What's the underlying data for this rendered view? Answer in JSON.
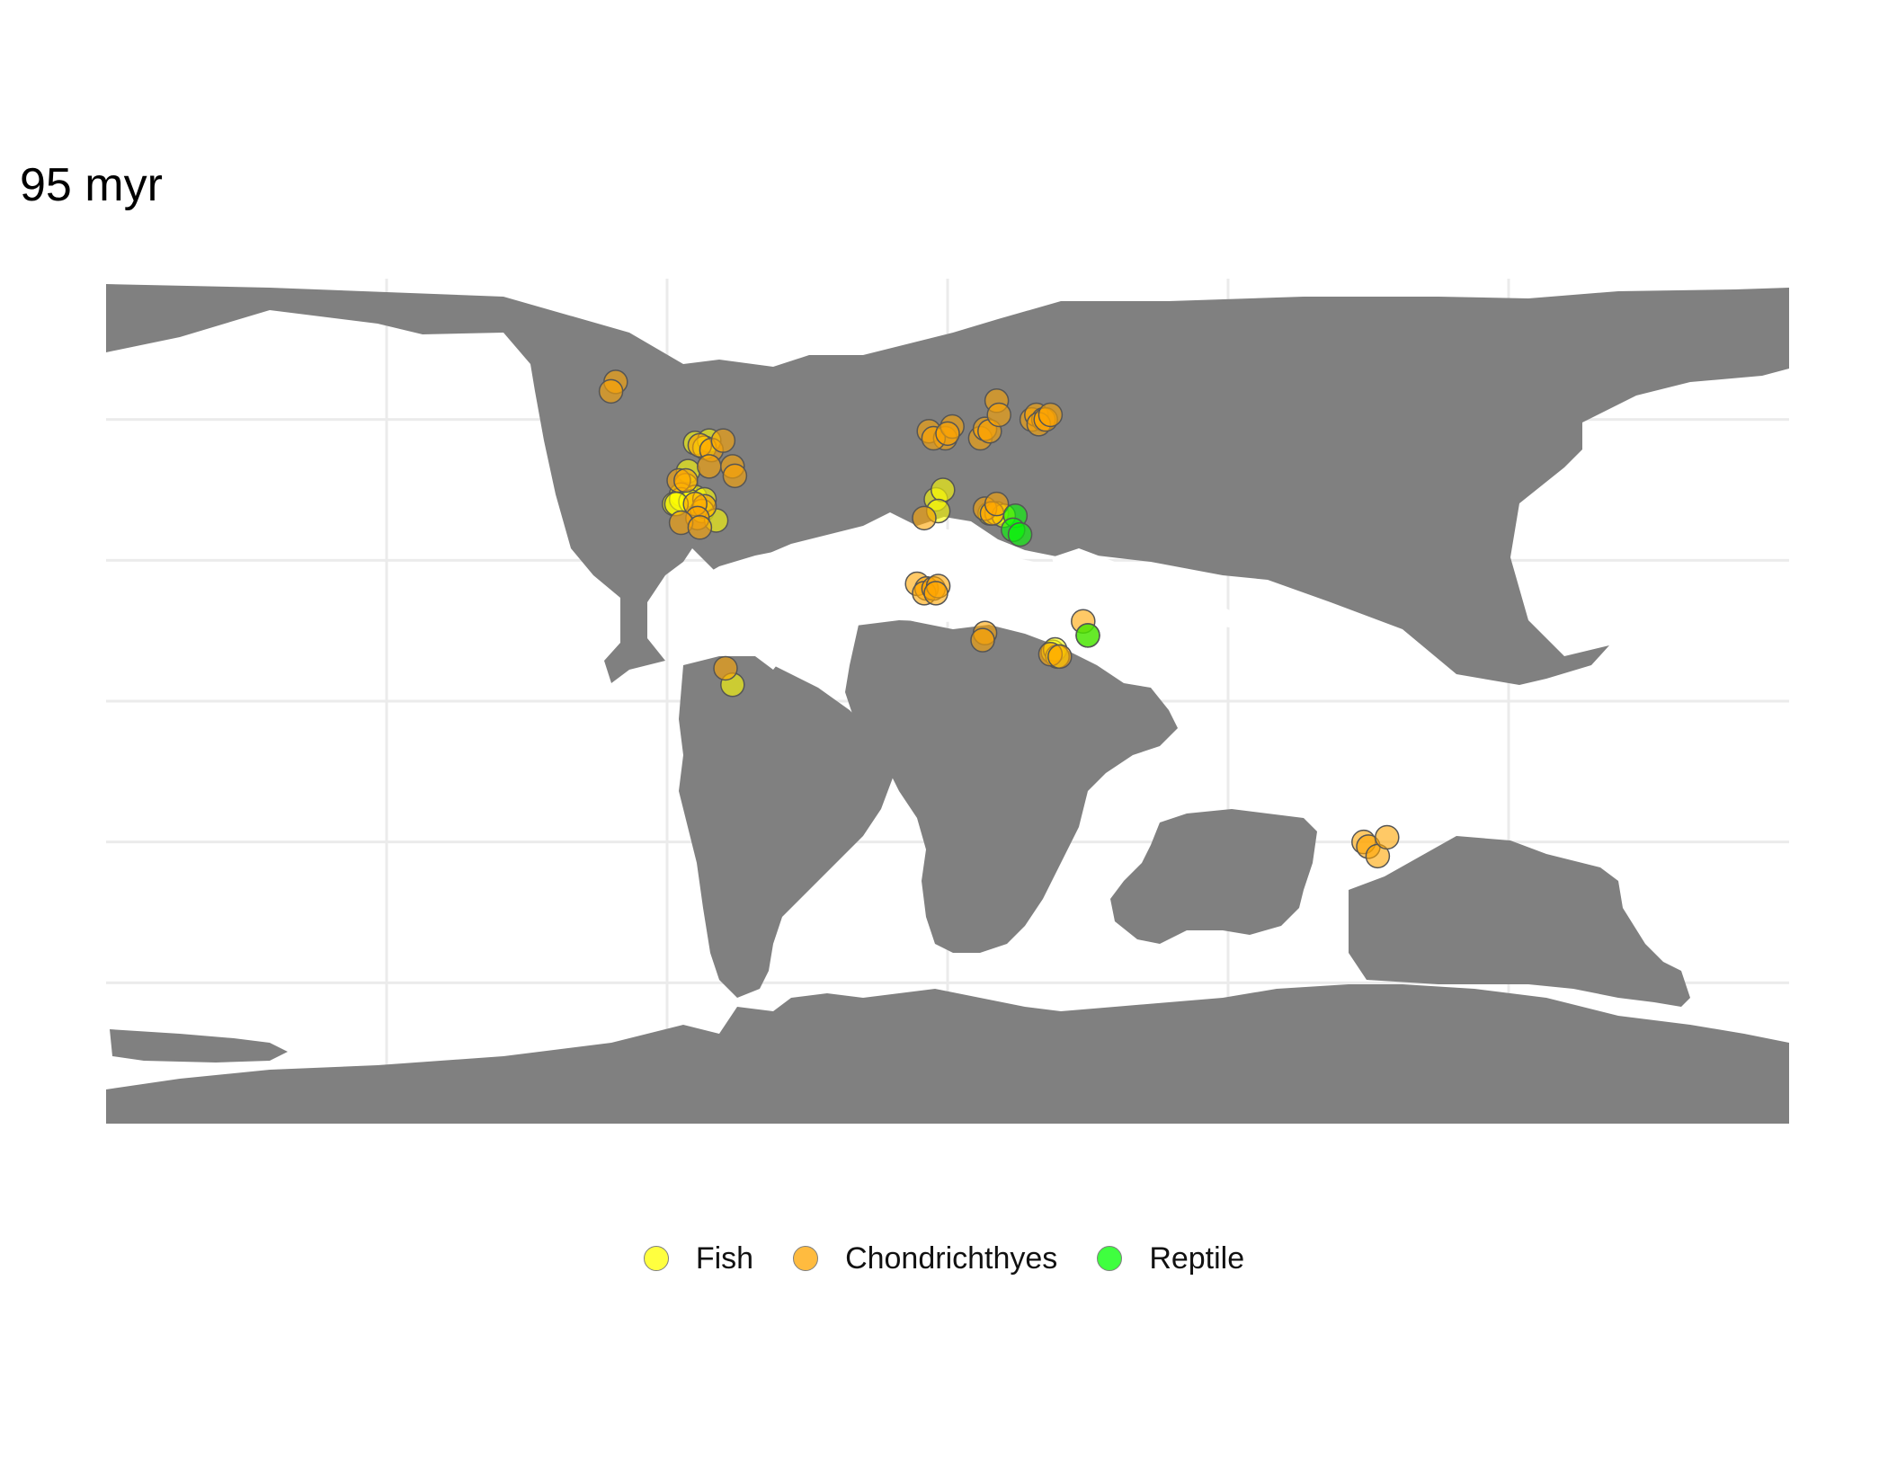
{
  "title": "95 myr",
  "legend": [
    {
      "label": "Fish",
      "color": "#FFFF00"
    },
    {
      "label": "Chondrichthyes",
      "color": "#FFA500"
    },
    {
      "label": "Reptile",
      "color": "#00FF00"
    }
  ],
  "colors": {
    "land": "#808080",
    "grid": "#EBEBEB",
    "point_stroke": "#555555"
  },
  "grid": {
    "longitudes": [
      -120,
      -60,
      0,
      60,
      120
    ],
    "latitudes": [
      -60,
      -30,
      0,
      30,
      60
    ]
  },
  "chart_data": {
    "type": "scatter",
    "projection": "equirectangular",
    "xlim": [
      -180,
      180
    ],
    "ylim": [
      -90,
      90
    ],
    "series": [
      {
        "name": "Fish",
        "points": [
          [
            -54,
            55
          ],
          [
            -51,
            55.5
          ],
          [
            -52,
            54
          ],
          [
            -55.5,
            49
          ],
          [
            -56,
            46
          ],
          [
            -57,
            44
          ],
          [
            -58.5,
            42
          ],
          [
            -57,
            43
          ],
          [
            -54,
            43.5
          ],
          [
            -55,
            42.5
          ],
          [
            -52,
            43
          ],
          [
            -58,
            42
          ],
          [
            -52.5,
            40.5
          ],
          [
            -49.5,
            38.5
          ],
          [
            -46,
            3.5
          ],
          [
            -2.5,
            43
          ],
          [
            -1,
            45
          ],
          [
            -2,
            40.5
          ],
          [
            9,
            40
          ],
          [
            10.5,
            40
          ],
          [
            12,
            39.5
          ],
          [
            22.5,
            10.5
          ],
          [
            23,
            11
          ],
          [
            23.5,
            9.5
          ]
        ]
      },
      {
        "name": "Chondrichthyes",
        "points": [
          [
            -71,
            68
          ],
          [
            -72,
            66
          ],
          [
            -53,
            54.5
          ],
          [
            -50.5,
            53.5
          ],
          [
            -48,
            55.5
          ],
          [
            -46,
            50
          ],
          [
            -45.5,
            48
          ],
          [
            -51,
            50
          ],
          [
            -57.5,
            47
          ],
          [
            -56,
            47
          ],
          [
            -52,
            41.5
          ],
          [
            -54,
            42
          ],
          [
            -53.5,
            39
          ],
          [
            -57,
            38
          ],
          [
            -53,
            37
          ],
          [
            -47.5,
            7
          ],
          [
            -4,
            57.5
          ],
          [
            -0.5,
            56
          ],
          [
            -3,
            56
          ],
          [
            1,
            58.5
          ],
          [
            0,
            57
          ],
          [
            7,
            56
          ],
          [
            8,
            58
          ],
          [
            9,
            57.5
          ],
          [
            10.5,
            64
          ],
          [
            11,
            61
          ],
          [
            18,
            60
          ],
          [
            19,
            61
          ],
          [
            20.5,
            60
          ],
          [
            19.5,
            59
          ],
          [
            21,
            60
          ],
          [
            22,
            61
          ],
          [
            -5,
            39
          ],
          [
            8,
            41
          ],
          [
            9.5,
            40
          ],
          [
            10.5,
            42
          ],
          [
            -6.5,
            25
          ],
          [
            -4.5,
            24
          ],
          [
            -5,
            23
          ],
          [
            -3,
            24
          ],
          [
            -2,
            24.5
          ],
          [
            -2.5,
            23
          ],
          [
            8,
            14.5
          ],
          [
            7.5,
            13
          ],
          [
            22,
            10
          ],
          [
            24,
            9.5
          ],
          [
            29,
            17
          ],
          [
            30,
            14
          ],
          [
            89,
            -30
          ],
          [
            90,
            -31
          ],
          [
            92,
            -33
          ],
          [
            94,
            -29
          ]
        ]
      },
      {
        "name": "Reptile",
        "points": [
          [
            14.5,
            39.5
          ],
          [
            14,
            36.5
          ],
          [
            15.5,
            35.5
          ],
          [
            30,
            14
          ]
        ]
      }
    ]
  }
}
